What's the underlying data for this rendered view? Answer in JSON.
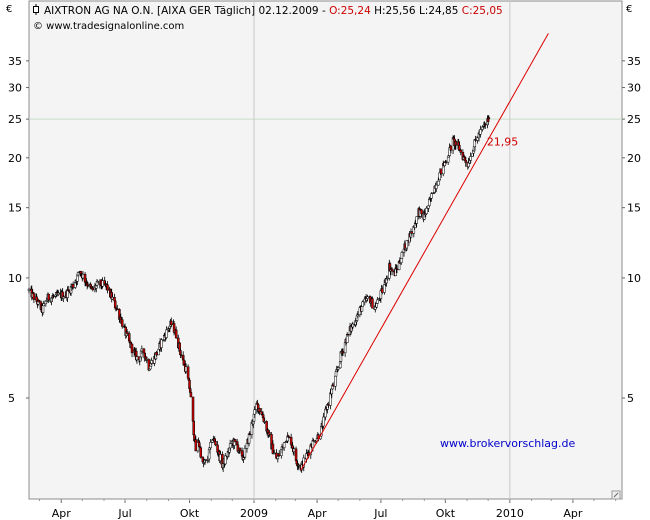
{
  "header": {
    "instrument": "AIXTRON AG NA O.N. [AIXA GER  Täglich] 02.12.2009 -",
    "open": "O:25,24",
    "high": "H:25,56",
    "low": "L:24,85",
    "close": "C:25,05",
    "copyright": "© www.tradesignalonline.com",
    "currency": "€"
  },
  "colors": {
    "up_candle": "#ffffff",
    "down_candle": "#cc0000",
    "trendline": "#dd0000",
    "watermark": "#0000cc",
    "plot_bg": "#f4f4f4",
    "grid_h": "#c8dcc8",
    "grid_v": "#c8c8c8"
  },
  "chart_data": {
    "type": "candlestick",
    "y_scale": "log",
    "ylim": [
      2.8,
      41
    ],
    "y_ticks": [
      5,
      10,
      15,
      20,
      25,
      30,
      35
    ],
    "y_tick_labels": [
      "5",
      "10",
      "15",
      "20",
      "25",
      "30",
      "35"
    ],
    "x_range": [
      "2008-02-15",
      "2010-06-10"
    ],
    "x_ticks": [
      {
        "date": "2008-04-01",
        "label": "Apr"
      },
      {
        "date": "2008-07-01",
        "label": "Jul"
      },
      {
        "date": "2008-10-01",
        "label": "Okt"
      },
      {
        "date": "2009-01-01",
        "label": "2009"
      },
      {
        "date": "2009-04-01",
        "label": "Apr"
      },
      {
        "date": "2009-07-01",
        "label": "Jul"
      },
      {
        "date": "2009-10-01",
        "label": "Okt"
      },
      {
        "date": "2010-01-01",
        "label": "2010"
      },
      {
        "date": "2010-04-01",
        "label": "Apr"
      }
    ],
    "grid_h_at": 25,
    "grid_v_dates": [
      "2009-01-01",
      "2010-01-01"
    ],
    "last_bar": {
      "date": "2009-12-02",
      "open": 25.24,
      "high": 25.56,
      "low": 24.85,
      "close": 25.05
    },
    "price_path": [
      [
        "2008-02-15",
        9.3
      ],
      [
        "2008-02-25",
        8.8
      ],
      [
        "2008-03-05",
        8.3
      ],
      [
        "2008-03-12",
        8.9
      ],
      [
        "2008-03-25",
        9.0
      ],
      [
        "2008-04-08",
        9.1
      ],
      [
        "2008-04-18",
        9.6
      ],
      [
        "2008-04-28",
        10.4
      ],
      [
        "2008-05-05",
        9.9
      ],
      [
        "2008-05-15",
        9.3
      ],
      [
        "2008-05-25",
        9.7
      ],
      [
        "2008-06-05",
        9.5
      ],
      [
        "2008-06-15",
        8.7
      ],
      [
        "2008-06-25",
        7.9
      ],
      [
        "2008-07-05",
        7.0
      ],
      [
        "2008-07-12",
        6.6
      ],
      [
        "2008-07-20",
        6.2
      ],
      [
        "2008-07-27",
        6.6
      ],
      [
        "2008-08-04",
        6.0
      ],
      [
        "2008-08-12",
        6.3
      ],
      [
        "2008-08-22",
        6.9
      ],
      [
        "2008-09-01",
        7.5
      ],
      [
        "2008-09-06",
        7.7
      ],
      [
        "2008-09-12",
        7.2
      ],
      [
        "2008-09-20",
        6.3
      ],
      [
        "2008-09-26",
        5.9
      ],
      [
        "2008-10-02",
        5.2
      ],
      [
        "2008-10-06",
        4.3
      ],
      [
        "2008-10-10",
        3.7
      ],
      [
        "2008-10-14",
        3.9
      ],
      [
        "2008-10-20",
        3.4
      ],
      [
        "2008-10-27",
        3.5
      ],
      [
        "2008-11-03",
        4.0
      ],
      [
        "2008-11-10",
        3.7
      ],
      [
        "2008-11-17",
        3.4
      ],
      [
        "2008-11-24",
        3.6
      ],
      [
        "2008-12-01",
        3.9
      ],
      [
        "2008-12-08",
        3.8
      ],
      [
        "2008-12-15",
        3.5
      ],
      [
        "2008-12-22",
        3.8
      ],
      [
        "2008-12-29",
        4.3
      ],
      [
        "2009-01-05",
        4.8
      ],
      [
        "2009-01-12",
        4.6
      ],
      [
        "2009-01-19",
        4.2
      ],
      [
        "2009-01-26",
        3.8
      ],
      [
        "2009-02-02",
        3.5
      ],
      [
        "2009-02-09",
        3.7
      ],
      [
        "2009-02-16",
        4.0
      ],
      [
        "2009-02-23",
        3.9
      ],
      [
        "2009-03-02",
        3.5
      ],
      [
        "2009-03-09",
        3.35
      ],
      [
        "2009-03-16",
        3.55
      ],
      [
        "2009-03-23",
        3.8
      ],
      [
        "2009-03-30",
        3.95
      ],
      [
        "2009-04-06",
        4.1
      ],
      [
        "2009-04-13",
        4.6
      ],
      [
        "2009-04-20",
        5.1
      ],
      [
        "2009-04-27",
        5.6
      ],
      [
        "2009-05-04",
        6.3
      ],
      [
        "2009-05-11",
        6.9
      ],
      [
        "2009-05-18",
        7.4
      ],
      [
        "2009-05-25",
        7.8
      ],
      [
        "2009-06-01",
        8.3
      ],
      [
        "2009-06-08",
        8.7
      ],
      [
        "2009-06-15",
        8.9
      ],
      [
        "2009-06-22",
        8.4
      ],
      [
        "2009-06-29",
        8.9
      ],
      [
        "2009-07-06",
        9.6
      ],
      [
        "2009-07-13",
        10.7
      ],
      [
        "2009-07-20",
        10.2
      ],
      [
        "2009-07-27",
        10.9
      ],
      [
        "2009-08-03",
        11.8
      ],
      [
        "2009-08-10",
        12.6
      ],
      [
        "2009-08-17",
        13.4
      ],
      [
        "2009-08-24",
        14.7
      ],
      [
        "2009-08-31",
        14.2
      ],
      [
        "2009-09-07",
        15.2
      ],
      [
        "2009-09-14",
        16.6
      ],
      [
        "2009-09-21",
        17.9
      ],
      [
        "2009-09-28",
        19.0
      ],
      [
        "2009-10-05",
        20.4
      ],
      [
        "2009-10-12",
        22.0
      ],
      [
        "2009-10-19",
        21.4
      ],
      [
        "2009-10-26",
        20.2
      ],
      [
        "2009-11-02",
        19.3
      ],
      [
        "2009-11-09",
        21.0
      ],
      [
        "2009-11-16",
        22.6
      ],
      [
        "2009-11-23",
        23.6
      ],
      [
        "2009-12-02",
        25.05
      ]
    ],
    "trendline": {
      "start": {
        "date": "2009-03-09",
        "value": 3.3
      },
      "end": {
        "date": "2010-02-25",
        "value": 41
      },
      "value_label": "21,95",
      "label_date": "2009-12-02",
      "label_value": 21.95
    },
    "watermark": "www.brokervorschlag.de"
  }
}
